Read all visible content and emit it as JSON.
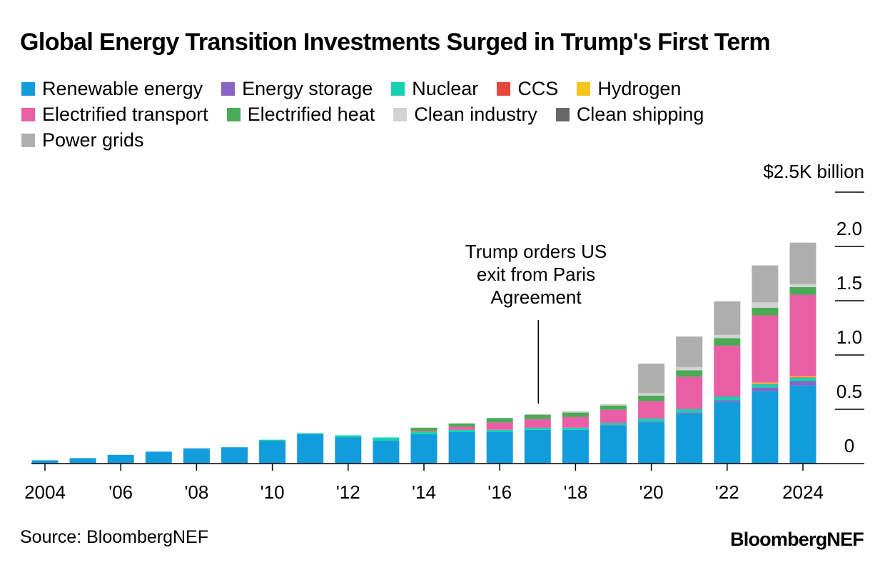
{
  "chart_data": {
    "type": "bar",
    "stacked": true,
    "title": "Global Energy Transition Investments Surged in Trump's First Term",
    "unit_label": "$2.5K billion",
    "ylim": [
      0,
      2.5
    ],
    "y_ticks": [
      {
        "value": 2.0,
        "label": "2.0"
      },
      {
        "value": 1.5,
        "label": "1.5"
      },
      {
        "value": 1.0,
        "label": "1.0"
      },
      {
        "value": 0.5,
        "label": "0.5"
      },
      {
        "value": 0,
        "label": "0"
      }
    ],
    "categories": [
      "2004",
      "2005",
      "2006",
      "2007",
      "2008",
      "2009",
      "2010",
      "2011",
      "2012",
      "2013",
      "2014",
      "2015",
      "2016",
      "2017",
      "2018",
      "2019",
      "2020",
      "2021",
      "2022",
      "2023",
      "2024"
    ],
    "x_tick_labels": [
      {
        "category": "2004",
        "label": "2004"
      },
      {
        "category": "2006",
        "label": "'06"
      },
      {
        "category": "2008",
        "label": "'08"
      },
      {
        "category": "2010",
        "label": "'10"
      },
      {
        "category": "2012",
        "label": "'12"
      },
      {
        "category": "2014",
        "label": "'14"
      },
      {
        "category": "2016",
        "label": "'16"
      },
      {
        "category": "2018",
        "label": "'18"
      },
      {
        "category": "2020",
        "label": "'20"
      },
      {
        "category": "2022",
        "label": "'22"
      },
      {
        "category": "2024",
        "label": "2024"
      }
    ],
    "series": [
      {
        "name": "Renewable energy",
        "color": "#139cdb",
        "values": [
          0.03,
          0.05,
          0.08,
          0.11,
          0.14,
          0.15,
          0.21,
          0.27,
          0.24,
          0.21,
          0.27,
          0.29,
          0.29,
          0.31,
          0.31,
          0.35,
          0.38,
          0.46,
          0.57,
          0.67,
          0.72
        ]
      },
      {
        "name": "Energy storage",
        "color": "#8a63c4",
        "values": [
          0,
          0,
          0,
          0,
          0,
          0,
          0,
          0,
          0,
          0,
          0,
          0,
          0,
          0,
          0,
          0.005,
          0.005,
          0.01,
          0.015,
          0.03,
          0.04
        ]
      },
      {
        "name": "Nuclear",
        "color": "#16d1b1",
        "values": [
          0,
          0,
          0,
          0,
          0,
          0,
          0.01,
          0.01,
          0.02,
          0.03,
          0.02,
          0.02,
          0.02,
          0.02,
          0.02,
          0.02,
          0.03,
          0.03,
          0.03,
          0.03,
          0.03
        ]
      },
      {
        "name": "CCS",
        "color": "#e8473d",
        "values": [
          0,
          0,
          0,
          0,
          0,
          0,
          0,
          0,
          0,
          0,
          0,
          0,
          0,
          0,
          0,
          0,
          0,
          0,
          0,
          0.005,
          0.005
        ]
      },
      {
        "name": "Hydrogen",
        "color": "#f6c51c",
        "values": [
          0,
          0,
          0,
          0,
          0,
          0,
          0,
          0,
          0,
          0,
          0,
          0,
          0,
          0,
          0,
          0,
          0,
          0,
          0,
          0.01,
          0.01
        ]
      },
      {
        "name": "Electrified transport",
        "color": "#e95ea5",
        "values": [
          0,
          0,
          0,
          0,
          0,
          0,
          0,
          0,
          0,
          0,
          0.01,
          0.03,
          0.07,
          0.08,
          0.1,
          0.12,
          0.16,
          0.3,
          0.47,
          0.62,
          0.75
        ]
      },
      {
        "name": "Electrified heat",
        "color": "#4aaa55",
        "values": [
          0,
          0,
          0,
          0,
          0,
          0,
          0,
          0,
          0,
          0,
          0.03,
          0.03,
          0.04,
          0.04,
          0.04,
          0.04,
          0.05,
          0.06,
          0.07,
          0.07,
          0.07
        ]
      },
      {
        "name": "Clean industry",
        "color": "#d2d2d2",
        "values": [
          0,
          0,
          0,
          0,
          0,
          0,
          0,
          0,
          0,
          0,
          0,
          0,
          0,
          0.005,
          0.015,
          0.015,
          0.025,
          0.03,
          0.03,
          0.05,
          0.03
        ]
      },
      {
        "name": "Clean shipping",
        "color": "#666666",
        "values": [
          0,
          0,
          0,
          0,
          0,
          0,
          0,
          0,
          0,
          0,
          0,
          0,
          0,
          0,
          0,
          0,
          0,
          0,
          0,
          0,
          0
        ]
      },
      {
        "name": "Power grids",
        "color": "#aeaeae",
        "values": [
          0,
          0,
          0,
          0,
          0,
          0,
          0,
          0,
          0,
          0,
          0,
          0,
          0,
          0,
          0,
          0,
          0.27,
          0.28,
          0.31,
          0.34,
          0.38
        ]
      }
    ],
    "annotation": {
      "lines": [
        "Trump orders US",
        "exit from Paris",
        "Agreement"
      ],
      "category": "2017"
    },
    "legend_position": "top-left",
    "grid": false
  },
  "legend_rows": [
    [
      "Renewable energy",
      "Energy storage",
      "Nuclear",
      "CCS",
      "Hydrogen"
    ],
    [
      "Electrified transport",
      "Electrified heat",
      "Clean industry",
      "Clean shipping"
    ],
    [
      "Power grids"
    ]
  ],
  "source": "Source: BloombergNEF",
  "brand": "BloombergNEF"
}
